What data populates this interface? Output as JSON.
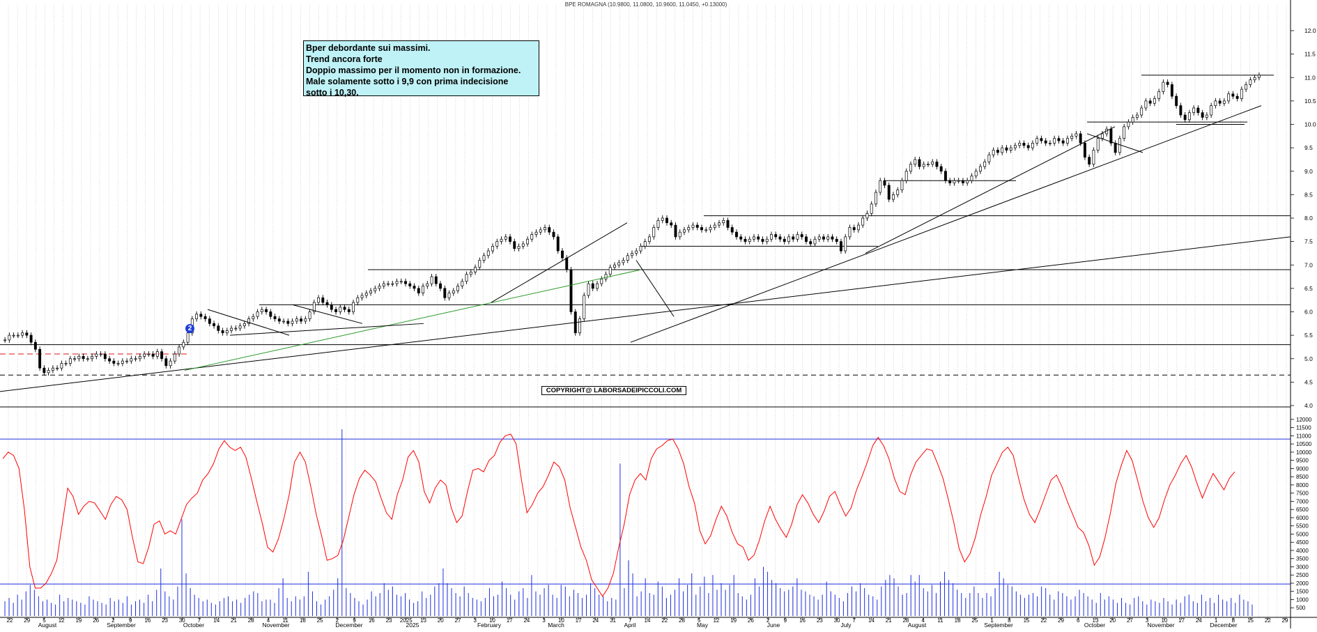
{
  "title": "BPE ROMAGNA (10.9800, 11.0800, 10.9600, 11.0450, +0.13000)",
  "annotation": [
    "Bper debordante sui massimi.",
    "Trend ancora forte",
    "Doppio massimo per il momento non in formazione.",
    "Male solamente sotto i 9,9  con prima indecisione",
    "sotto i 10,30."
  ],
  "copyright": "COPYRIGHT@ LABORSADEIPICCOLI.COM",
  "marker_label": "2",
  "colors": {
    "candle": "#000000",
    "trendline": "#000000",
    "green_trendline": "#2a9a2a",
    "support_dashed_red": "#e01010",
    "oscillator": "#ff0000",
    "volume": "#1f2fe0",
    "oscillator_levels": "#1f2fe0",
    "annotation_bg": "#bff2f6"
  },
  "chart_data": [
    {
      "type": "candlestick",
      "title": "BPE ROMAGNA (10.9800, 11.0800, 10.9600, 11.0450, +0.13000)",
      "x_tick_labels": [
        "22",
        "29",
        "5",
        "12",
        "19",
        "26",
        "2",
        "9",
        "16",
        "23",
        "30",
        "7",
        "14",
        "21",
        "28",
        "4",
        "11",
        "18",
        "25",
        "2",
        "9",
        "16",
        "23",
        "2025",
        "13",
        "20",
        "27",
        "3",
        "10",
        "17",
        "24",
        "3",
        "10",
        "17",
        "24",
        "31",
        "7",
        "14",
        "22",
        "28",
        "5",
        "12",
        "19",
        "26",
        "2",
        "9",
        "16",
        "23",
        "30",
        "7",
        "14",
        "21",
        "28",
        "4",
        "11",
        "18",
        "25",
        "1",
        "8",
        "15",
        "22",
        "29",
        "6",
        "13",
        "20",
        "27",
        "3",
        "10",
        "17",
        "24",
        "1",
        "8",
        "15",
        "22",
        "29"
      ],
      "month_labels": [
        "August",
        "September",
        "October",
        "November",
        "December",
        "2025",
        "February",
        "March",
        "April",
        "May",
        "June",
        "July",
        "August",
        "September",
        "October",
        "November",
        "December"
      ],
      "y_ticks": [
        "12.0",
        "11.5",
        "11.0",
        "10.5",
        "10.0",
        "9.5",
        "9.0",
        "8.5",
        "8.0",
        "7.5",
        "7.0",
        "6.5",
        "6.0",
        "5.5",
        "5.0",
        "4.5",
        "4.0"
      ],
      "ylim": [
        4.0,
        12.0
      ],
      "grid": true,
      "close": [
        5.4,
        5.5,
        5.5,
        5.5,
        5.55,
        5.5,
        5.35,
        5.2,
        4.8,
        4.7,
        4.75,
        4.8,
        4.8,
        4.9,
        4.9,
        5.0,
        5.0,
        5.05,
        5.0,
        5.0,
        5.05,
        5.1,
        5.1,
        5.0,
        4.95,
        4.9,
        4.9,
        4.95,
        4.95,
        5.0,
        5.0,
        5.05,
        5.1,
        5.1,
        5.05,
        5.15,
        5.0,
        4.85,
        4.95,
        5.1,
        5.25,
        5.35,
        5.55,
        5.85,
        5.95,
        5.9,
        5.85,
        5.75,
        5.7,
        5.6,
        5.55,
        5.6,
        5.65,
        5.65,
        5.7,
        5.75,
        5.85,
        5.9,
        6.0,
        6.05,
        6.0,
        5.9,
        5.85,
        5.8,
        5.8,
        5.75,
        5.8,
        5.85,
        5.8,
        5.85,
        6.0,
        6.2,
        6.3,
        6.2,
        6.15,
        6.05,
        6.0,
        6.1,
        6.05,
        6.0,
        6.2,
        6.3,
        6.35,
        6.4,
        6.45,
        6.5,
        6.55,
        6.6,
        6.6,
        6.6,
        6.65,
        6.65,
        6.6,
        6.55,
        6.5,
        6.4,
        6.55,
        6.6,
        6.75,
        6.6,
        6.5,
        6.3,
        6.4,
        6.45,
        6.55,
        6.65,
        6.8,
        6.85,
        6.95,
        7.1,
        7.2,
        7.3,
        7.4,
        7.5,
        7.55,
        7.6,
        7.5,
        7.35,
        7.4,
        7.45,
        7.55,
        7.65,
        7.7,
        7.75,
        7.8,
        7.7,
        7.6,
        7.3,
        7.15,
        6.9,
        6.0,
        5.55,
        5.85,
        6.35,
        6.6,
        6.5,
        6.6,
        6.7,
        6.8,
        6.95,
        7.0,
        7.05,
        7.1,
        7.2,
        7.25,
        7.3,
        7.4,
        7.5,
        7.6,
        7.8,
        7.95,
        8.0,
        7.9,
        7.85,
        7.6,
        7.7,
        7.75,
        7.8,
        7.85,
        7.8,
        7.75,
        7.75,
        7.8,
        7.85,
        7.9,
        7.95,
        7.8,
        7.7,
        7.6,
        7.55,
        7.5,
        7.55,
        7.6,
        7.55,
        7.5,
        7.55,
        7.65,
        7.6,
        7.55,
        7.5,
        7.6,
        7.55,
        7.65,
        7.6,
        7.5,
        7.45,
        7.55,
        7.6,
        7.55,
        7.6,
        7.55,
        7.5,
        7.3,
        7.6,
        7.8,
        7.75,
        7.85,
        8.0,
        8.1,
        8.3,
        8.55,
        8.8,
        8.7,
        8.4,
        8.5,
        8.6,
        8.8,
        9.0,
        9.15,
        9.25,
        9.1,
        9.15,
        9.15,
        9.2,
        9.1,
        9.0,
        8.8,
        8.75,
        8.8,
        8.8,
        8.75,
        8.8,
        8.9,
        9.0,
        9.1,
        9.2,
        9.35,
        9.45,
        9.4,
        9.5,
        9.45,
        9.5,
        9.55,
        9.6,
        9.55,
        9.5,
        9.6,
        9.7,
        9.65,
        9.6,
        9.6,
        9.7,
        9.65,
        9.6,
        9.7,
        9.75,
        9.8,
        9.6,
        9.3,
        9.15,
        9.45,
        9.7,
        9.8,
        9.9,
        9.6,
        9.4,
        9.7,
        9.95,
        10.05,
        10.15,
        10.2,
        10.35,
        10.5,
        10.45,
        10.55,
        10.7,
        10.9,
        10.85,
        10.6,
        10.4,
        10.2,
        10.1,
        10.25,
        10.35,
        10.25,
        10.15,
        10.2,
        10.4,
        10.5,
        10.45,
        10.5,
        10.65,
        10.6,
        10.55,
        10.75,
        10.85,
        10.95,
        11.0,
        11.05
      ]
    },
    {
      "type": "line",
      "series": [
        {
          "name": "",
          "kind": "oscillator",
          "values": [
            9600,
            10000,
            9800,
            9000,
            6500,
            3000,
            1700,
            1700,
            2000,
            2600,
            3400,
            5600,
            7800,
            7300,
            6200,
            6700,
            7000,
            6900,
            6400,
            5900,
            6800,
            7300,
            7100,
            6500,
            4800,
            3300,
            3200,
            4200,
            5600,
            5800,
            5000,
            5200,
            5000,
            5900,
            6800,
            7200,
            7500,
            8300,
            8700,
            9300,
            10200,
            10700,
            10300,
            10100,
            10300,
            9700,
            8400,
            7000,
            5700,
            4200,
            3900,
            4700,
            5900,
            7400,
            9400,
            10000,
            9400,
            7900,
            6200,
            4900,
            3400,
            3500,
            3700,
            4600,
            6000,
            7400,
            8400,
            8900,
            8600,
            8200,
            7200,
            6300,
            5900,
            7400,
            8300,
            9700,
            10100,
            9400,
            7600,
            6900,
            7800,
            8300,
            8000,
            6600,
            5700,
            6100,
            7600,
            8900,
            9000,
            8800,
            9500,
            9800,
            10600,
            11000,
            11100,
            10500,
            8300,
            6300,
            6800,
            7500,
            7900,
            8600,
            9400,
            9100,
            8300,
            6600,
            5400,
            4200,
            3400,
            2200,
            1700,
            1200,
            1700,
            2600,
            4200,
            5600,
            7400,
            8300,
            8700,
            8300,
            9600,
            10200,
            10400,
            10700,
            10800,
            10200,
            9300,
            7900,
            6900,
            5200,
            4400,
            4900,
            5900,
            6700,
            6100,
            5100,
            4400,
            4200,
            3400,
            3700,
            4600,
            5800,
            6700,
            5900,
            5300,
            4800,
            5600,
            6800,
            7400,
            6900,
            6200,
            5700,
            6400,
            7300,
            7600,
            6800,
            6100,
            6600,
            7700,
            8500,
            9400,
            10400,
            10900,
            10400,
            9600,
            8400,
            7600,
            7400,
            8600,
            9400,
            9800,
            10200,
            10100,
            9300,
            8400,
            7100,
            5700,
            4100,
            3300,
            3800,
            4800,
            6200,
            7300,
            8600,
            9300,
            10000,
            10300,
            9800,
            8400,
            7100,
            6200,
            5700,
            6500,
            7400,
            8300,
            8600,
            7900,
            7000,
            6200,
            5400,
            5100,
            4300,
            3100,
            3600,
            4800,
            6300,
            8100,
            9200,
            10100,
            9500,
            8300,
            7000,
            6000,
            5400,
            6000,
            7100,
            8000,
            8600,
            9300,
            9800,
            9100,
            8100,
            7200,
            8000,
            8700,
            8200,
            7700,
            8400,
            8800
          ]
        },
        {
          "name": "",
          "kind": "volume",
          "values": [
            900,
            1100,
            800,
            1300,
            1000,
            1500,
            1900,
            1600,
            1200,
            900,
            1000,
            800,
            700,
            1300,
            900,
            1100,
            1000,
            900,
            800,
            700,
            1200,
            1000,
            900,
            800,
            700,
            1100,
            900,
            1000,
            800,
            1200,
            700,
            900,
            1000,
            800,
            1300,
            900,
            1600,
            2900,
            1500,
            1200,
            1000,
            1800,
            5900,
            2600,
            1700,
            1300,
            1100,
            900,
            1000,
            800,
            700,
            900,
            1100,
            1200,
            900,
            1000,
            800,
            1100,
            1300,
            1500,
            1400,
            900,
            1000,
            1000,
            800,
            1700,
            2300,
            1100,
            900,
            1200,
            1000,
            1200,
            2700,
            1500,
            900,
            700,
            1000,
            1200,
            1600,
            2300,
            11400,
            1700,
            1400,
            1100,
            900,
            700,
            1000,
            1500,
            1200,
            1400,
            2000,
            1600,
            1800,
            1300,
            1200,
            1400,
            1000,
            800,
            900,
            1500,
            1100,
            1300,
            1800,
            2000,
            2900,
            2000,
            1700,
            1400,
            1200,
            1800,
            1400,
            1100,
            1000,
            900,
            1100,
            1700,
            1200,
            1300,
            2100,
            1700,
            1300,
            1000,
            1500,
            1700,
            1100,
            2500,
            1500,
            1300,
            1700,
            1900,
            1300,
            1100,
            1900,
            1800,
            1200,
            1600,
            1400,
            1100,
            1300,
            2000,
            1700,
            1300,
            1200,
            900,
            1100,
            1000,
            9300,
            1700,
            3400,
            2600,
            1200,
            1500,
            2300,
            1400,
            1300,
            2100,
            1800,
            1100,
            1300,
            1600,
            2300,
            1500,
            1900,
            2600,
            1300,
            1800,
            2400,
            1400,
            2500,
            1600,
            2000,
            1600,
            1900,
            2500,
            1400,
            1200,
            1000,
            1300,
            2300,
            1800,
            3000,
            2700,
            2200,
            2000,
            1700,
            1500,
            1600,
            1800,
            2300,
            1600,
            1500,
            1300,
            1200,
            1000,
            1300,
            2100,
            1500,
            1300,
            1100,
            900,
            1400,
            1800,
            1500,
            2000,
            1700,
            1300,
            1200,
            1000,
            1800,
            2200,
            2500,
            2300,
            1800,
            1300,
            1400,
            2500,
            2100,
            2500,
            1700,
            1500,
            1900,
            1400,
            2100,
            2700,
            2200,
            2000,
            1600,
            1400,
            1100,
            1400,
            1800,
            1400,
            1100,
            1400,
            1200,
            1700,
            2700,
            2300,
            1900,
            1800,
            1500,
            1300,
            1100,
            1300,
            1400,
            1200,
            1800,
            1700,
            1300,
            1000,
            1500,
            1400,
            1200,
            1000,
            1200,
            1600,
            1400,
            1200,
            1000,
            800,
            1400,
            1000,
            1200,
            1000,
            800,
            1100,
            800,
            700,
            1100,
            1200,
            900,
            700,
            1000,
            900,
            800,
            1100,
            900,
            700,
            1000,
            800,
            1200,
            1300,
            900,
            800,
            1300,
            900,
            1100,
            800,
            1300,
            1000,
            900,
            1100,
            800,
            1300,
            1000,
            900,
            700
          ]
        }
      ],
      "y_ticks": [
        "12000",
        "11500",
        "11000",
        "10500",
        "10000",
        "9500",
        "9000",
        "8500",
        "8000",
        "7500",
        "7000",
        "6500",
        "6000",
        "5500",
        "5000",
        "4500",
        "4000",
        "3500",
        "3000",
        "2500",
        "2000",
        "1500",
        "1000",
        "500"
      ],
      "ylim": [
        0,
        12250
      ],
      "reference_levels": [
        10800,
        1950
      ]
    }
  ]
}
